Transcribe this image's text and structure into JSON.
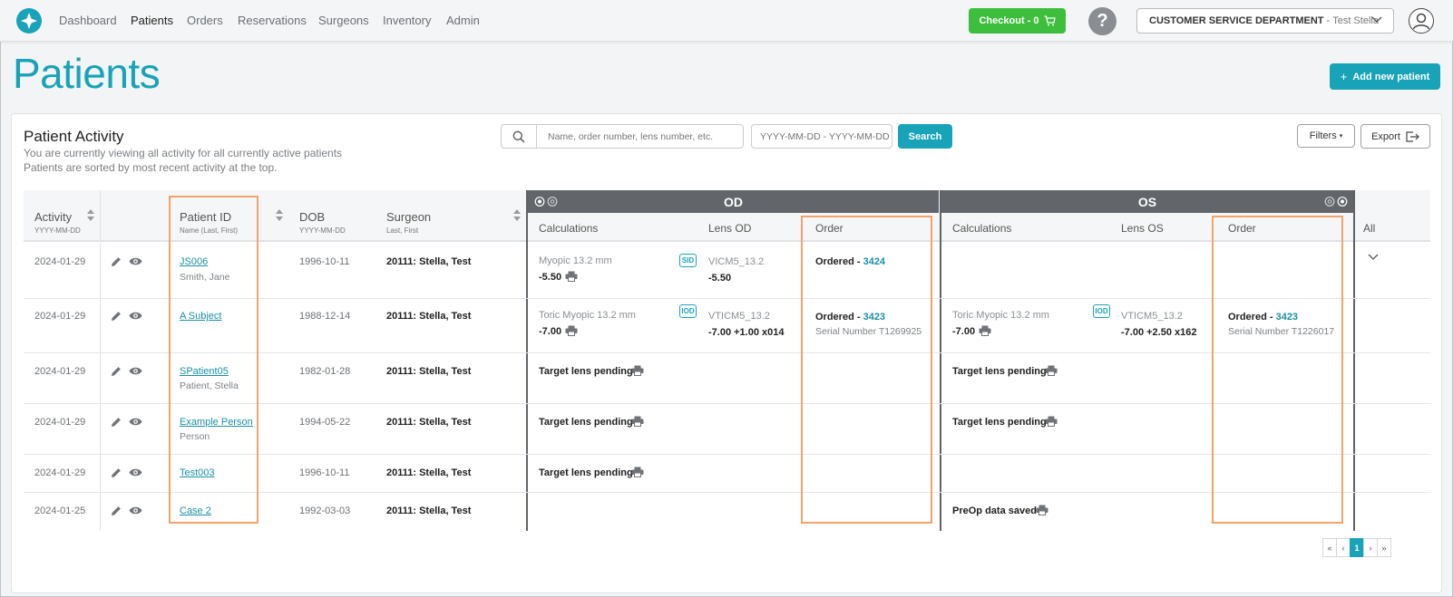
{
  "nav": {
    "items": [
      "Dashboard",
      "Patients",
      "Orders",
      "Reservations",
      "Surgeons",
      "Inventory",
      "Admin"
    ],
    "active": "Patients",
    "checkout_label": "Checkout - 0",
    "help_label": "?",
    "department": "CUSTOMER SERVICE DEPARTMENT",
    "department_sep": "-",
    "user": "Test Stella"
  },
  "page": {
    "title": "Patients",
    "add_button": "Add new patient"
  },
  "activity": {
    "title": "Patient Activity",
    "subtitle1": "You are currently viewing all activity for all currently active patients",
    "subtitle2": "Patients are sorted by most recent activity at the top.",
    "search_placeholder": "Name, order number, lens number, etc.",
    "date_placeholder": "YYYY-MM-DD - YYYY-MM-DD",
    "search_button": "Search",
    "filters_button": "Filters",
    "export_button": "Export"
  },
  "table": {
    "bands": {
      "od": "OD",
      "os": "OS"
    },
    "headers": {
      "activity": "Activity",
      "activity_sub": "YYYY-MM-DD",
      "patient_id": "Patient ID",
      "patient_id_sub": "Name (Last, First)",
      "dob": "DOB",
      "dob_sub": "YYYY-MM-DD",
      "surgeon": "Surgeon",
      "surgeon_sub": "Last, First",
      "calc_od": "Calculations",
      "lens_od": "Lens OD",
      "order_od": "Order",
      "calc_os": "Calculations",
      "lens_os": "Lens OS",
      "order_os": "Order",
      "all": "All"
    },
    "rows": [
      {
        "date": "2024-01-29",
        "pid": "JS006",
        "name": "Smith, Jane",
        "dob": "1996-10-11",
        "surgeon": "20111: Stella, Test",
        "od_calc": "Myopic 13.2 mm",
        "od_calc_val": "-5.50",
        "od_badge": "SID",
        "od_lens": "VICM5_13.2",
        "od_lens_val": "-5.50",
        "od_order_text": "Ordered - ",
        "od_order_num": "3424",
        "od_serial": ""
      },
      {
        "date": "2024-01-29",
        "pid": "A Subject",
        "name": "",
        "dob": "1988-12-14",
        "surgeon": "20111: Stella, Test",
        "od_calc": "Toric Myopic 13.2 mm",
        "od_calc_val": "-7.00",
        "od_badge": "IOD",
        "od_lens": "VTICM5_13.2",
        "od_lens_val": "-7.00 +1.00 x014",
        "od_order_text": "Ordered - ",
        "od_order_num": "3423",
        "od_serial": "Serial Number T1269925",
        "os_calc": "Toric Myopic 13.2 mm",
        "os_calc_val": "-7.00",
        "os_badge": "IOD",
        "os_lens": "VTICM5_13.2",
        "os_lens_val": "-7.00 +2.50 x162",
        "os_order_text": "Ordered - ",
        "os_order_num": "3423",
        "os_serial": "Serial Number T1226017"
      },
      {
        "date": "2024-01-29",
        "pid": "SPatient05",
        "name": "Patient, Stella",
        "dob": "1982-01-28",
        "surgeon": "20111: Stella, Test",
        "od_status": "Target lens pending",
        "os_status": "Target lens pending"
      },
      {
        "date": "2024-01-29",
        "pid": "Example Person",
        "name": "Person",
        "dob": "1994-05-22",
        "surgeon": "20111: Stella, Test",
        "od_status": "Target lens pending",
        "os_status": "Target lens pending"
      },
      {
        "date": "2024-01-29",
        "pid": "Test003",
        "name": "",
        "dob": "1996-10-11",
        "surgeon": "20111: Stella, Test",
        "od_status": "Target lens pending"
      },
      {
        "date": "2024-01-25",
        "pid": "Case 2",
        "name": "",
        "dob": "1992-03-03",
        "surgeon": "20111: Stella, Test",
        "os_status": "PreOp data saved"
      }
    ]
  },
  "pagination": {
    "first": "«",
    "prev": "‹",
    "current": "1",
    "next": "›",
    "last": "»"
  },
  "colors": {
    "accent": "#19a3b8",
    "checkout": "#3dbe3d",
    "highlight": "#f2a36c",
    "band": "#62666a"
  }
}
